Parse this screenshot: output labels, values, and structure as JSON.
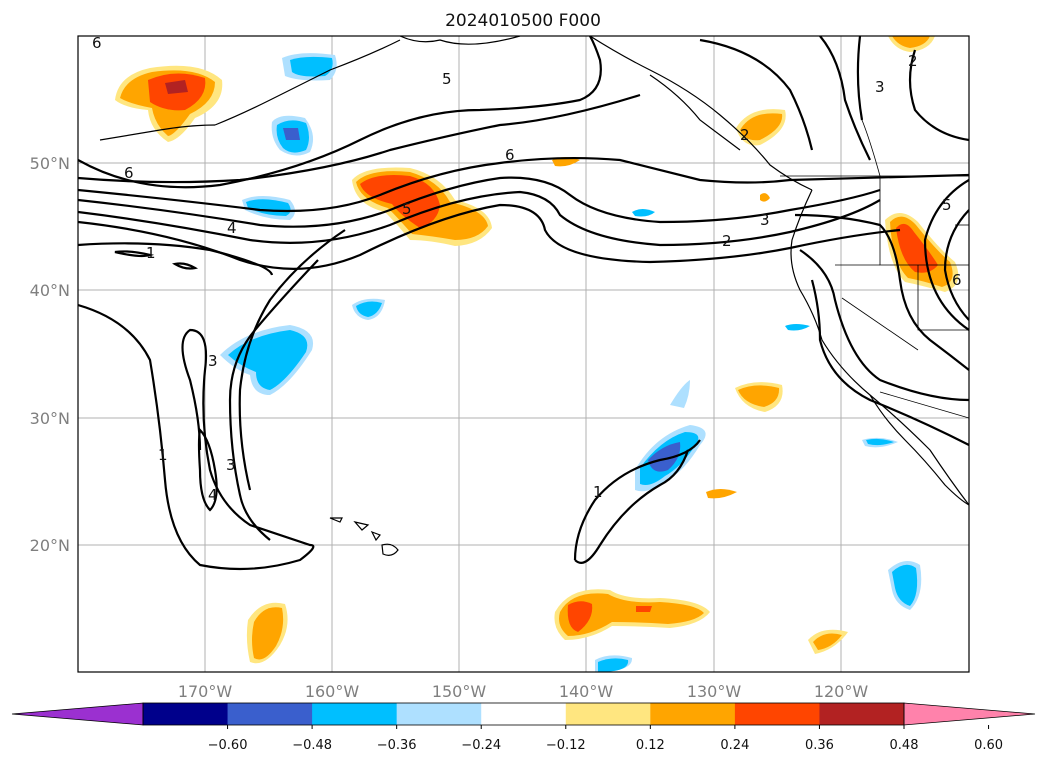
{
  "title": "2024010500 F000",
  "lat_labels": [
    "50°N",
    "40°N",
    "30°N",
    "20°N"
  ],
  "lon_labels": [
    "170°W",
    "160°W",
    "150°W",
    "140°W",
    "130°W",
    "120°W"
  ],
  "colorbar": {
    "ticks": [
      "−0.60",
      "−0.48",
      "−0.36",
      "−0.24",
      "−0.12",
      "0.12",
      "0.24",
      "0.36",
      "0.48",
      "0.60"
    ],
    "colors": [
      "#9b30d0",
      "#00008b",
      "#3a5fcd",
      "#00bfff",
      "#aee0ff",
      "#ffffff",
      "#ffe680",
      "#ffa500",
      "#ff4500",
      "#b22222",
      "#ff82ab"
    ]
  },
  "contour_labels": [
    "6",
    "6",
    "5",
    "6",
    "5",
    "4",
    "3",
    "2",
    "1",
    "1",
    "3",
    "4",
    "2",
    "3",
    "1",
    "3",
    "5",
    "6",
    "2"
  ]
}
